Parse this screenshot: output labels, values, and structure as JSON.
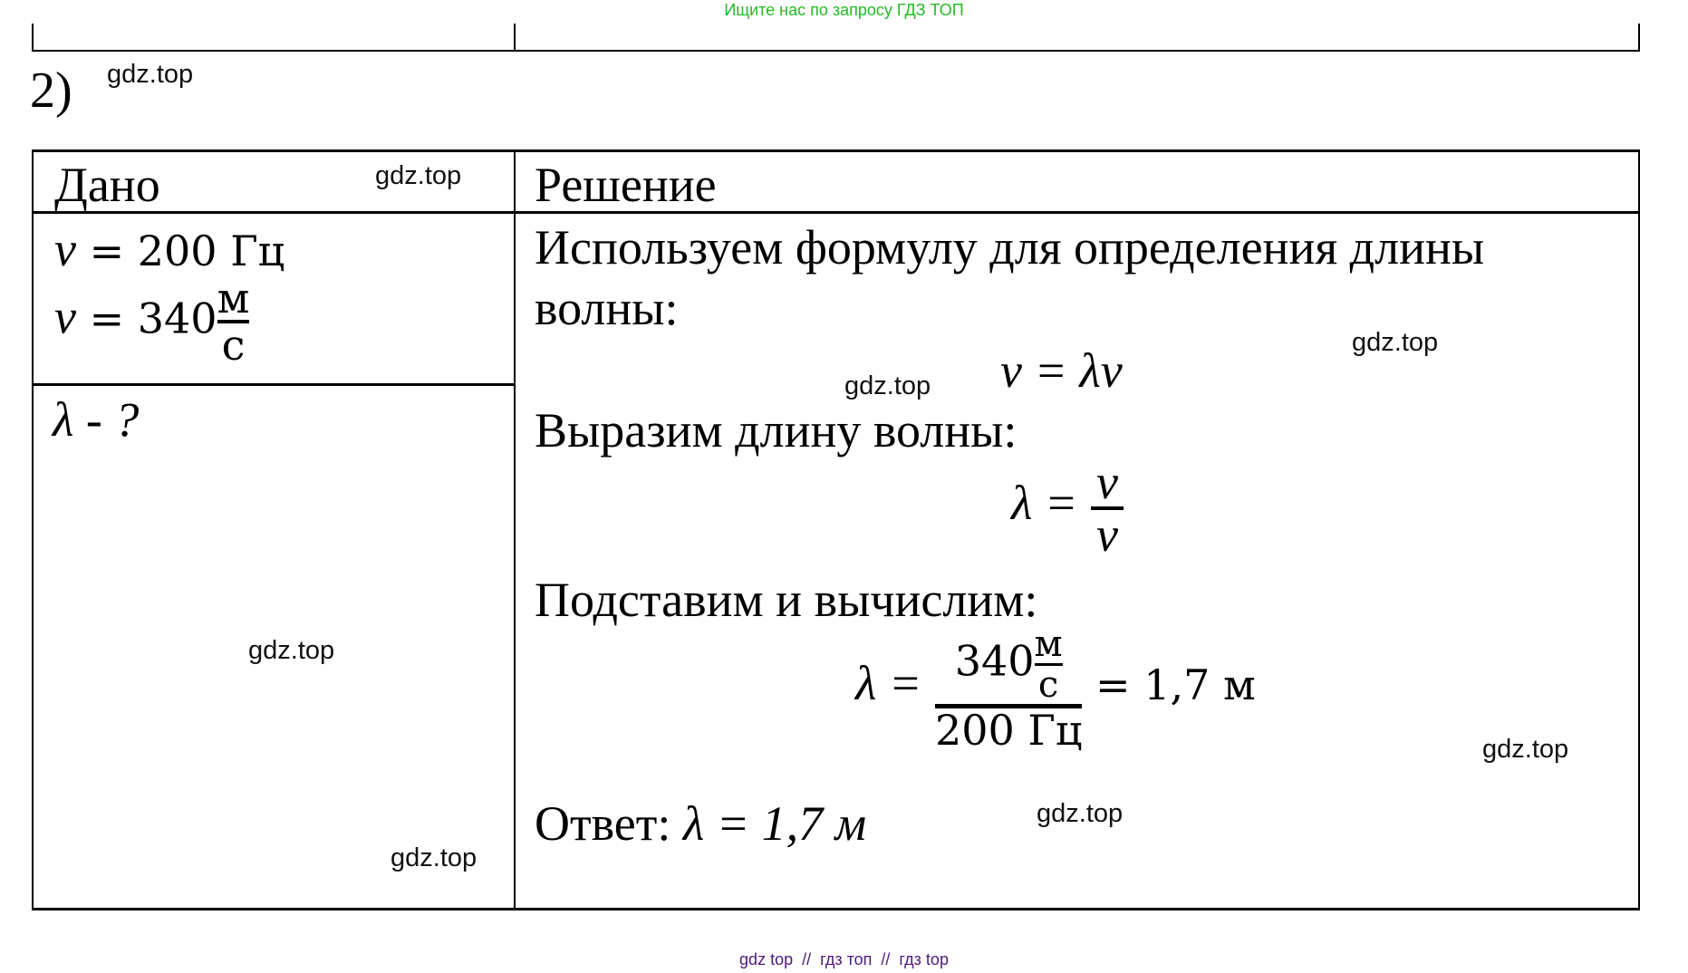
{
  "header": {
    "promo_text": "Ищите нас по запросу ГДЗ ТОП",
    "promo_color": "#22bb22"
  },
  "item_number": "2)",
  "watermark": "gdz.top",
  "table": {
    "given_header": "Дано",
    "solution_header": "Решение",
    "given": {
      "frequency": {
        "symbol": "ν",
        "eq": "=",
        "value": "200 Гц"
      },
      "speed": {
        "symbol": "v",
        "eq": "=",
        "value": "340",
        "unit_num": "м",
        "unit_den": "с"
      },
      "find": "λ - ?"
    },
    "solution": {
      "intro_line1": "Используем формулу для определения длины",
      "intro_line2": "волны:",
      "formula1": "v = λν",
      "express": "Выразим длину волны:",
      "formula2": {
        "lhs": "λ =",
        "num": "v",
        "den": "ν"
      },
      "substitute": "Подставим и вычислим:",
      "formula3": {
        "lhs": "λ =",
        "num_value": "340",
        "num_unit_num": "м",
        "num_unit_den": "с",
        "den": "200 Гц",
        "result": "= 1,7 м"
      },
      "answer_label": "Ответ:",
      "answer": "λ = 1,7 м"
    }
  },
  "footer": {
    "text": "gdz top  //  гдз топ  //  гдз top",
    "color": "#4b1a7a"
  }
}
